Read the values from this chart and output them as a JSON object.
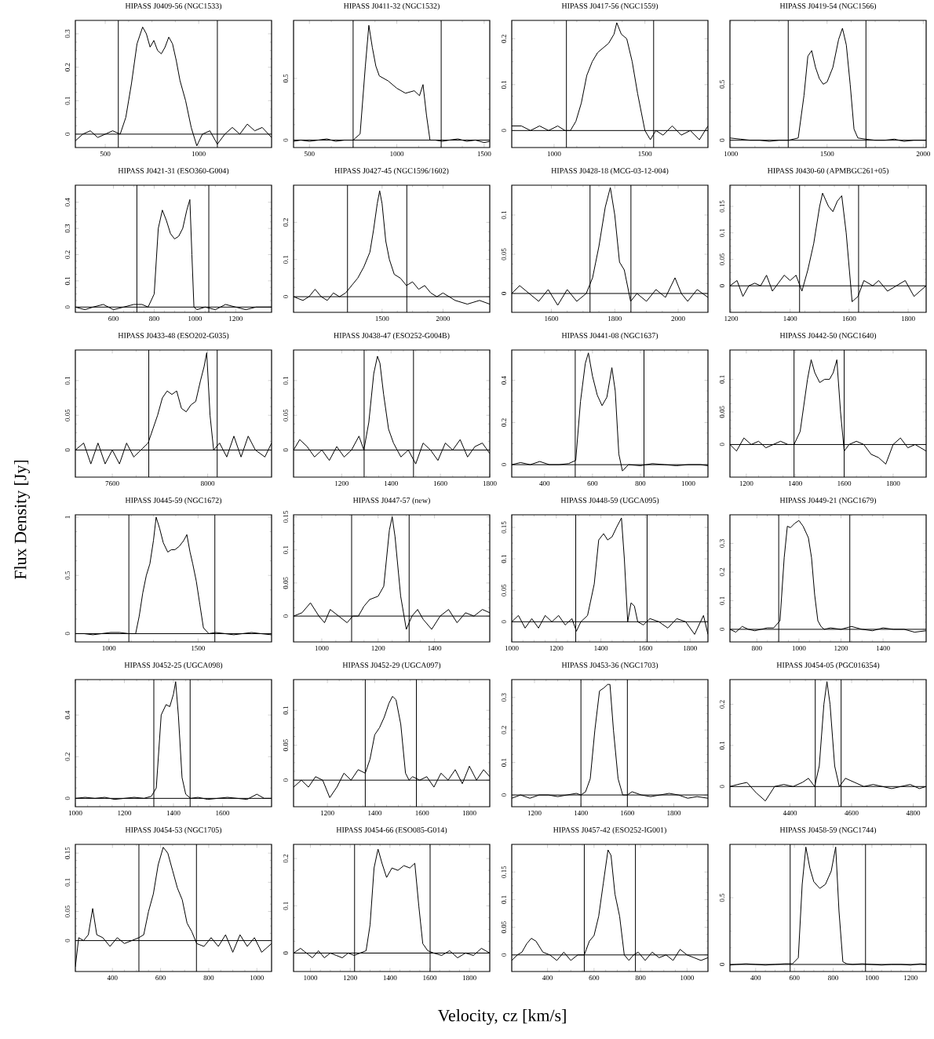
{
  "chart_data": [
    {
      "type": "line",
      "title": "HIPASS J0409-56 (NGC1533)",
      "x": [
        340,
        380,
        420,
        460,
        500,
        540,
        580,
        610,
        640,
        670,
        700,
        720,
        740,
        760,
        780,
        800,
        820,
        840,
        860,
        880,
        900,
        930,
        960,
        990,
        1020,
        1060,
        1100,
        1140,
        1180,
        1220,
        1260,
        1300,
        1340,
        1390
      ],
      "values": [
        -0.02,
        0.0,
        0.01,
        -0.01,
        0.0,
        0.01,
        0.0,
        0.05,
        0.15,
        0.27,
        0.32,
        0.3,
        0.26,
        0.28,
        0.25,
        0.24,
        0.26,
        0.29,
        0.27,
        0.22,
        0.16,
        0.1,
        0.02,
        -0.035,
        0.0,
        0.01,
        -0.03,
        0.0,
        0.02,
        0.0,
        0.03,
        0.01,
        0.02,
        -0.01
      ],
      "xlim": [
        340,
        1390
      ],
      "ylim": [
        -0.04,
        0.34
      ],
      "xticks": [
        500,
        1000
      ],
      "yticks": [
        0,
        0.1,
        0.2,
        0.3
      ],
      "ref_lines": [
        {
          "axis": "x",
          "value": 570
        },
        {
          "axis": "x",
          "value": 1100
        },
        {
          "axis": "y",
          "value": 0
        }
      ]
    },
    {
      "type": "line",
      "title": "HIPASS J0411-32 (NGC1532)",
      "x": [
        409,
        450,
        500,
        550,
        600,
        650,
        700,
        750,
        790,
        820,
        840,
        860,
        880,
        900,
        950,
        1000,
        1050,
        1100,
        1130,
        1150,
        1170,
        1190,
        1220,
        1260,
        1300,
        1350,
        1400,
        1450,
        1500,
        1532
      ],
      "values": [
        -0.01,
        0.0,
        -0.01,
        0.0,
        0.01,
        -0.01,
        0.0,
        0.0,
        0.05,
        0.6,
        0.93,
        0.75,
        0.6,
        0.52,
        0.48,
        0.42,
        0.38,
        0.4,
        0.36,
        0.45,
        0.2,
        0.0,
        0.0,
        -0.01,
        0.0,
        0.01,
        -0.01,
        0.0,
        -0.02,
        -0.01
      ],
      "xlim": [
        409,
        1532
      ],
      "ylim": [
        -0.06,
        0.97
      ],
      "xticks": [
        500,
        1000,
        1500
      ],
      "yticks": [
        0,
        0.5
      ],
      "ref_lines": [
        {
          "axis": "x",
          "value": 750
        },
        {
          "axis": "x",
          "value": 1254
        },
        {
          "axis": "y",
          "value": 0
        }
      ]
    },
    {
      "type": "line",
      "title": "HIPASS J0417-56 (NGC1559)",
      "x": [
        767,
        820,
        870,
        920,
        970,
        1020,
        1060,
        1090,
        1120,
        1150,
        1180,
        1210,
        1240,
        1270,
        1300,
        1330,
        1345,
        1370,
        1400,
        1430,
        1460,
        1500,
        1530,
        1560,
        1600,
        1650,
        1700,
        1750,
        1800,
        1847
      ],
      "values": [
        0.01,
        0.01,
        0.0,
        0.01,
        0.0,
        0.01,
        0.0,
        0.0,
        0.02,
        0.06,
        0.12,
        0.15,
        0.17,
        0.18,
        0.19,
        0.21,
        0.235,
        0.21,
        0.2,
        0.15,
        0.08,
        0.0,
        -0.02,
        0.0,
        -0.01,
        0.01,
        -0.01,
        0.0,
        -0.02,
        0.01
      ],
      "xlim": [
        767,
        1847
      ],
      "ylim": [
        -0.037,
        0.24
      ],
      "xticks": [
        1000,
        1500
      ],
      "yticks": [
        0,
        0.1,
        0.2
      ],
      "ref_lines": [
        {
          "axis": "x",
          "value": 1068
        },
        {
          "axis": "x",
          "value": 1548
        },
        {
          "axis": "y",
          "value": 0
        }
      ]
    },
    {
      "type": "line",
      "title": "HIPASS J0419-54 (NGC1566)",
      "x": [
        995,
        1050,
        1100,
        1150,
        1200,
        1250,
        1300,
        1350,
        1380,
        1400,
        1420,
        1440,
        1460,
        1480,
        1500,
        1530,
        1560,
        1580,
        1600,
        1620,
        1640,
        1660,
        1700,
        1750,
        1800,
        1850,
        1900,
        1950,
        2015
      ],
      "values": [
        0.02,
        0.01,
        0.0,
        0.0,
        -0.01,
        0.0,
        0.0,
        0.02,
        0.4,
        0.75,
        0.8,
        0.65,
        0.55,
        0.5,
        0.52,
        0.65,
        0.9,
        1.0,
        0.85,
        0.5,
        0.1,
        0.02,
        0.01,
        0.0,
        0.0,
        0.01,
        -0.01,
        0.0,
        0.0
      ],
      "xlim": [
        995,
        2015
      ],
      "ylim": [
        -0.065,
        1.07
      ],
      "xticks": [
        1000,
        1500,
        2000
      ],
      "yticks": [
        0,
        0.5
      ],
      "ref_lines": [
        {
          "axis": "x",
          "value": 1298
        },
        {
          "axis": "x",
          "value": 1702
        },
        {
          "axis": "y",
          "value": 0
        }
      ]
    },
    {
      "type": "line",
      "title": "HIPASS J0421-31 (ESO360-G004)",
      "x": [
        413,
        460,
        500,
        550,
        600,
        650,
        700,
        740,
        770,
        800,
        820,
        840,
        860,
        880,
        900,
        920,
        940,
        960,
        975,
        985,
        995,
        1010,
        1050,
        1100,
        1150,
        1200,
        1250,
        1300,
        1376
      ],
      "values": [
        0.0,
        -0.01,
        0.0,
        0.01,
        -0.01,
        0.0,
        0.01,
        0.01,
        0.0,
        0.05,
        0.3,
        0.37,
        0.33,
        0.28,
        0.26,
        0.27,
        0.3,
        0.37,
        0.41,
        0.2,
        0.0,
        -0.01,
        0.0,
        -0.01,
        0.01,
        0.0,
        -0.01,
        0.0,
        0.0
      ],
      "xlim": [
        413,
        1376
      ],
      "ylim": [
        -0.02,
        0.465
      ],
      "xticks": [
        600,
        800,
        1000,
        1200
      ],
      "yticks": [
        0,
        0.1,
        0.2,
        0.3,
        0.4
      ],
      "ref_lines": [
        {
          "axis": "x",
          "value": 715
        },
        {
          "axis": "x",
          "value": 1068
        },
        {
          "axis": "y",
          "value": 0
        }
      ]
    },
    {
      "type": "line",
      "title": "HIPASS J0427-45 (NGC1596/1602)",
      "x": [
        773,
        850,
        900,
        950,
        1000,
        1050,
        1100,
        1150,
        1200,
        1250,
        1300,
        1350,
        1400,
        1430,
        1460,
        1480,
        1500,
        1530,
        1560,
        1600,
        1650,
        1700,
        1750,
        1800,
        1850,
        1900,
        1950,
        2000,
        2100,
        2200,
        2300,
        2384
      ],
      "values": [
        0.0,
        -0.01,
        0.0,
        0.02,
        0.0,
        -0.01,
        0.01,
        0.0,
        0.01,
        0.03,
        0.05,
        0.08,
        0.12,
        0.18,
        0.25,
        0.285,
        0.25,
        0.15,
        0.1,
        0.06,
        0.05,
        0.03,
        0.04,
        0.02,
        0.03,
        0.01,
        0.0,
        0.01,
        -0.01,
        -0.02,
        -0.01,
        -0.02
      ],
      "xlim": [
        773,
        2384
      ],
      "ylim": [
        -0.042,
        0.3
      ],
      "xticks": [
        1500,
        2000
      ],
      "yticks": [
        0,
        0.1,
        0.2
      ],
      "ref_lines": [
        {
          "axis": "x",
          "value": 1216
        },
        {
          "axis": "x",
          "value": 1703
        },
        {
          "axis": "y",
          "value": 0
        }
      ]
    },
    {
      "type": "line",
      "title": "HIPASS J0428-18 (MCG-03-12-004)",
      "x": [
        1475,
        1500,
        1530,
        1560,
        1590,
        1620,
        1650,
        1680,
        1710,
        1730,
        1750,
        1770,
        1786,
        1800,
        1815,
        1830,
        1850,
        1870,
        1900,
        1930,
        1960,
        1990,
        2010,
        2030,
        2060,
        2094
      ],
      "values": [
        0.0,
        0.01,
        0.0,
        -0.01,
        0.005,
        -0.015,
        0.005,
        -0.01,
        0.0,
        0.02,
        0.06,
        0.11,
        0.135,
        0.1,
        0.04,
        0.03,
        -0.01,
        0.0,
        -0.01,
        0.005,
        -0.005,
        0.02,
        0.0,
        -0.01,
        0.005,
        -0.005
      ],
      "xlim": [
        1475,
        2094
      ],
      "ylim": [
        -0.024,
        0.138
      ],
      "xticks": [
        1600,
        1800,
        2000
      ],
      "yticks": [
        0,
        0.05,
        0.1
      ],
      "ref_lines": [
        {
          "axis": "x",
          "value": 1722
        },
        {
          "axis": "x",
          "value": 1851
        },
        {
          "axis": "y",
          "value": 0
        }
      ]
    },
    {
      "type": "line",
      "title": "HIPASS J0430-60 (APMBGC261+05)",
      "x": [
        1196,
        1220,
        1240,
        1260,
        1280,
        1300,
        1320,
        1340,
        1360,
        1380,
        1400,
        1420,
        1440,
        1460,
        1480,
        1500,
        1510,
        1530,
        1545,
        1560,
        1575,
        1590,
        1610,
        1630,
        1650,
        1680,
        1700,
        1730,
        1760,
        1790,
        1820,
        1840,
        1861
      ],
      "values": [
        0.0,
        0.01,
        -0.02,
        0.0,
        0.005,
        0.0,
        0.02,
        -0.01,
        0.005,
        0.02,
        0.01,
        0.02,
        -0.01,
        0.03,
        0.08,
        0.15,
        0.175,
        0.15,
        0.14,
        0.16,
        0.17,
        0.1,
        -0.03,
        -0.02,
        0.01,
        0.0,
        0.01,
        -0.01,
        0.0,
        0.01,
        -0.02,
        -0.01,
        0.0
      ],
      "xlim": [
        1196,
        1861
      ],
      "ylim": [
        -0.05,
        0.19
      ],
      "xticks": [
        1200,
        1400,
        1600,
        1800
      ],
      "yticks": [
        0,
        0.05,
        0.1,
        0.15
      ],
      "ref_lines": [
        {
          "axis": "x",
          "value": 1432
        },
        {
          "axis": "x",
          "value": 1632
        },
        {
          "axis": "y",
          "value": 0
        }
      ]
    },
    {
      "type": "line",
      "title": "HIPASS J0433-48 (ESO202-G035)",
      "x": [
        7445,
        7480,
        7510,
        7540,
        7570,
        7600,
        7630,
        7660,
        7690,
        7720,
        7750,
        7770,
        7790,
        7810,
        7830,
        7850,
        7870,
        7890,
        7910,
        7930,
        7950,
        7970,
        7985,
        7996,
        8010,
        8025,
        8050,
        8080,
        8110,
        8140,
        8170,
        8200,
        8240,
        8268
      ],
      "values": [
        0.0,
        0.01,
        -0.02,
        0.01,
        -0.02,
        0.0,
        -0.02,
        0.01,
        -0.01,
        0.0,
        0.01,
        0.03,
        0.05,
        0.075,
        0.085,
        0.08,
        0.085,
        0.06,
        0.055,
        0.065,
        0.07,
        0.1,
        0.12,
        0.14,
        0.05,
        0.0,
        0.01,
        -0.01,
        0.02,
        -0.01,
        0.02,
        0.0,
        -0.01,
        0.01
      ],
      "xlim": [
        7445,
        8268
      ],
      "ylim": [
        -0.039,
        0.144
      ],
      "xticks": [
        7600,
        8000
      ],
      "yticks": [
        0,
        0.05,
        0.1
      ],
      "ref_lines": [
        {
          "axis": "x",
          "value": 7753
        },
        {
          "axis": "x",
          "value": 8040
        },
        {
          "axis": "y",
          "value": 0
        }
      ]
    },
    {
      "type": "line",
      "title": "HIPASS J0438-47 (ESO252-G004B)",
      "x": [
        1005,
        1030,
        1060,
        1090,
        1120,
        1150,
        1180,
        1210,
        1240,
        1270,
        1290,
        1310,
        1330,
        1345,
        1355,
        1370,
        1390,
        1410,
        1440,
        1470,
        1500,
        1530,
        1560,
        1590,
        1620,
        1650,
        1680,
        1710,
        1740,
        1770,
        1800
      ],
      "values": [
        0.0,
        0.015,
        0.005,
        -0.01,
        0.0,
        -0.015,
        0.005,
        -0.01,
        0.0,
        0.02,
        0.0,
        0.04,
        0.11,
        0.135,
        0.125,
        0.08,
        0.03,
        0.01,
        -0.01,
        0.0,
        -0.02,
        0.01,
        0.0,
        -0.015,
        0.01,
        0.0,
        0.015,
        -0.01,
        0.005,
        0.01,
        -0.005
      ],
      "xlim": [
        1005,
        1800
      ],
      "ylim": [
        -0.039,
        0.144
      ],
      "xticks": [
        1200,
        1400,
        1600,
        1800
      ],
      "yticks": [
        0,
        0.05,
        0.1
      ],
      "ref_lines": [
        {
          "axis": "x",
          "value": 1291
        },
        {
          "axis": "x",
          "value": 1491
        },
        {
          "axis": "y",
          "value": 0
        }
      ]
    },
    {
      "type": "line",
      "title": "HIPASS J0441-08 (NGC1637)",
      "x": [
        263,
        300,
        340,
        380,
        420,
        460,
        500,
        530,
        550,
        570,
        583,
        600,
        620,
        640,
        660,
        681,
        695,
        710,
        725,
        750,
        800,
        850,
        900,
        950,
        1000,
        1050,
        1082
      ],
      "values": [
        0.0,
        0.01,
        0.0,
        0.015,
        0.0,
        0.0,
        0.005,
        0.02,
        0.3,
        0.48,
        0.53,
        0.42,
        0.33,
        0.28,
        0.32,
        0.46,
        0.35,
        0.05,
        -0.03,
        0.0,
        -0.005,
        0.005,
        0.0,
        -0.005,
        0.0,
        0.0,
        -0.005
      ],
      "xlim": [
        263,
        1082
      ],
      "ylim": [
        -0.059,
        0.544
      ],
      "xticks": [
        400,
        600,
        800,
        1000
      ],
      "yticks": [
        0,
        0.2,
        0.4
      ],
      "ref_lines": [
        {
          "axis": "x",
          "value": 528
        },
        {
          "axis": "x",
          "value": 815
        },
        {
          "axis": "y",
          "value": 0
        }
      ]
    },
    {
      "type": "line",
      "title": "HIPASS J0442-50 (NGC1640)",
      "x": [
        1133,
        1160,
        1190,
        1220,
        1250,
        1280,
        1310,
        1340,
        1370,
        1395,
        1420,
        1450,
        1465,
        1480,
        1500,
        1520,
        1540,
        1555,
        1570,
        1585,
        1600,
        1620,
        1650,
        1680,
        1710,
        1740,
        1770,
        1800,
        1830,
        1860,
        1890,
        1935
      ],
      "values": [
        0.0,
        -0.01,
        0.01,
        0.0,
        0.005,
        -0.005,
        0.0,
        0.005,
        0.0,
        0.0,
        0.02,
        0.1,
        0.13,
        0.11,
        0.095,
        0.1,
        0.1,
        0.11,
        0.13,
        0.05,
        -0.01,
        0.0,
        0.005,
        0.0,
        -0.015,
        -0.02,
        -0.03,
        0.0,
        0.01,
        -0.005,
        0.0,
        -0.01
      ],
      "xlim": [
        1133,
        1935
      ],
      "ylim": [
        -0.05,
        0.145
      ],
      "xticks": [
        1200,
        1400,
        1600,
        1800
      ],
      "yticks": [
        0,
        0.05,
        0.1
      ],
      "ref_lines": [
        {
          "axis": "x",
          "value": 1395
        },
        {
          "axis": "x",
          "value": 1600
        },
        {
          "axis": "y",
          "value": 0
        }
      ]
    },
    {
      "type": "line",
      "title": "HIPASS J0445-59 (NGC1672)",
      "x": [
        812,
        860,
        910,
        960,
        1010,
        1060,
        1110,
        1150,
        1170,
        1190,
        1210,
        1230,
        1250,
        1265,
        1285,
        1305,
        1330,
        1350,
        1370,
        1395,
        1420,
        1437,
        1455,
        1470,
        1490,
        1510,
        1530,
        1560,
        1600,
        1650,
        1700,
        1750,
        1800,
        1850,
        1912
      ],
      "values": [
        0.0,
        0.0,
        -0.01,
        0.0,
        0.01,
        0.01,
        0.0,
        0.0,
        0.15,
        0.35,
        0.5,
        0.6,
        0.8,
        1.0,
        0.9,
        0.78,
        0.7,
        0.72,
        0.72,
        0.75,
        0.8,
        0.85,
        0.7,
        0.6,
        0.45,
        0.25,
        0.05,
        0.0,
        0.01,
        0.0,
        -0.01,
        0.0,
        0.01,
        0.0,
        -0.01
      ],
      "xlim": [
        812,
        1912
      ],
      "ylim": [
        -0.071,
        1.02
      ],
      "xticks": [
        1000,
        1500
      ],
      "yticks": [
        0,
        0.5,
        1
      ],
      "ref_lines": [
        {
          "axis": "x",
          "value": 1112
        },
        {
          "axis": "x",
          "value": 1594
        },
        {
          "axis": "y",
          "value": 0
        }
      ]
    },
    {
      "type": "line",
      "title": "HIPASS J0447-57 (new)",
      "x": [
        900,
        930,
        960,
        990,
        1010,
        1030,
        1060,
        1090,
        1110,
        1130,
        1150,
        1170,
        1200,
        1220,
        1240,
        1250,
        1260,
        1280,
        1300,
        1320,
        1340,
        1360,
        1390,
        1420,
        1450,
        1480,
        1510,
        1540,
        1570,
        1596
      ],
      "values": [
        0.0,
        0.005,
        0.02,
        0.0,
        -0.01,
        0.01,
        0.0,
        -0.01,
        0.0,
        0.0,
        0.015,
        0.025,
        0.03,
        0.045,
        0.13,
        0.15,
        0.12,
        0.03,
        -0.02,
        0.0,
        0.01,
        -0.005,
        -0.02,
        0.0,
        0.01,
        -0.01,
        0.005,
        0.0,
        0.01,
        0.005
      ],
      "xlim": [
        900,
        1596
      ],
      "ylim": [
        -0.039,
        0.153
      ],
      "xticks": [
        1000,
        1200,
        1400
      ],
      "yticks": [
        0,
        0.05,
        0.1,
        0.15
      ],
      "ref_lines": [
        {
          "axis": "x",
          "value": 1106
        },
        {
          "axis": "x",
          "value": 1310
        },
        {
          "axis": "y",
          "value": 0
        }
      ]
    },
    {
      "type": "line",
      "title": "HIPASS J0448-59 (UGCA095)",
      "x": [
        1000,
        1030,
        1060,
        1090,
        1120,
        1150,
        1180,
        1210,
        1240,
        1270,
        1290,
        1310,
        1340,
        1370,
        1390,
        1412,
        1430,
        1450,
        1470,
        1492,
        1505,
        1520,
        1535,
        1550,
        1565,
        1590,
        1620,
        1660,
        1700,
        1740,
        1780,
        1820,
        1860,
        1880
      ],
      "values": [
        0.0,
        0.01,
        -0.01,
        0.005,
        -0.01,
        0.01,
        0.0,
        0.01,
        -0.005,
        0.005,
        -0.015,
        0.0,
        0.01,
        0.06,
        0.13,
        0.14,
        0.13,
        0.135,
        0.15,
        0.165,
        0.1,
        0.0,
        0.03,
        0.025,
        0.0,
        -0.005,
        0.005,
        0.0,
        -0.01,
        0.005,
        0.0,
        -0.02,
        0.01,
        -0.02
      ],
      "xlim": [
        1000,
        1880
      ],
      "ylim": [
        -0.032,
        0.17
      ],
      "xticks": [
        1000,
        1200,
        1400,
        1600,
        1800
      ],
      "yticks": [
        0,
        0.05,
        0.1,
        0.15
      ],
      "ref_lines": [
        {
          "axis": "x",
          "value": 1287
        },
        {
          "axis": "x",
          "value": 1607
        },
        {
          "axis": "y",
          "value": 0
        }
      ]
    },
    {
      "type": "line",
      "title": "HIPASS J0449-21 (NGC1679)",
      "x": [
        672,
        700,
        730,
        760,
        790,
        820,
        850,
        880,
        910,
        930,
        945,
        960,
        980,
        1000,
        1020,
        1045,
        1060,
        1075,
        1090,
        1105,
        1120,
        1150,
        1200,
        1250,
        1300,
        1350,
        1400,
        1450,
        1500,
        1550,
        1605
      ],
      "values": [
        0.0,
        -0.01,
        0.01,
        0.0,
        -0.005,
        0.0,
        0.005,
        0.005,
        0.03,
        0.25,
        0.36,
        0.355,
        0.37,
        0.38,
        0.36,
        0.32,
        0.25,
        0.12,
        0.03,
        0.01,
        0.0,
        0.005,
        0.0,
        0.01,
        0.0,
        -0.005,
        0.005,
        0.0,
        0.0,
        -0.01,
        -0.005
      ],
      "xlim": [
        672,
        1605
      ],
      "ylim": [
        -0.044,
        0.4
      ],
      "xticks": [
        800,
        1000,
        1200,
        1400
      ],
      "yticks": [
        0,
        0.1,
        0.2,
        0.3
      ],
      "ref_lines": [
        {
          "axis": "x",
          "value": 904
        },
        {
          "axis": "x",
          "value": 1242
        },
        {
          "axis": "y",
          "value": 0
        }
      ]
    },
    {
      "type": "line",
      "title": "HIPASS J0452-25 (UGCA098)",
      "x": [
        1000,
        1040,
        1080,
        1120,
        1160,
        1200,
        1240,
        1280,
        1310,
        1330,
        1350,
        1370,
        1385,
        1400,
        1409,
        1420,
        1435,
        1450,
        1470,
        1500,
        1540,
        1580,
        1620,
        1660,
        1700,
        1740,
        1770,
        1800
      ],
      "values": [
        0.0,
        0.005,
        0.0,
        0.005,
        -0.005,
        0.0,
        0.005,
        0.0,
        0.01,
        0.05,
        0.4,
        0.45,
        0.44,
        0.5,
        0.56,
        0.4,
        0.1,
        0.02,
        0.0,
        0.005,
        -0.005,
        0.0,
        0.005,
        0.0,
        -0.005,
        0.02,
        0.0,
        0.0
      ],
      "xlim": [
        1000,
        1800
      ],
      "ylim": [
        -0.04,
        0.57
      ],
      "xticks": [
        1000,
        1200,
        1400,
        1600
      ],
      "yticks": [
        0,
        0.2,
        0.4
      ],
      "ref_lines": [
        {
          "axis": "x",
          "value": 1320
        },
        {
          "axis": "x",
          "value": 1468
        },
        {
          "axis": "y",
          "value": 0
        }
      ]
    },
    {
      "type": "line",
      "title": "HIPASS J0452-29 (UGCA097)",
      "x": [
        1057,
        1090,
        1120,
        1150,
        1180,
        1210,
        1240,
        1270,
        1300,
        1330,
        1360,
        1380,
        1400,
        1420,
        1440,
        1460,
        1475,
        1490,
        1510,
        1530,
        1545,
        1560,
        1590,
        1620,
        1650,
        1680,
        1710,
        1740,
        1770,
        1800,
        1830,
        1860,
        1886
      ],
      "values": [
        -0.01,
        0.0,
        -0.01,
        0.005,
        0.0,
        -0.025,
        -0.01,
        0.01,
        0.0,
        0.015,
        0.01,
        0.03,
        0.065,
        0.075,
        0.09,
        0.11,
        0.12,
        0.115,
        0.08,
        0.01,
        0.0,
        0.005,
        0.0,
        0.005,
        -0.01,
        0.01,
        0.0,
        0.015,
        -0.005,
        0.02,
        0.0,
        0.015,
        0.005
      ],
      "xlim": [
        1057,
        1886
      ],
      "ylim": [
        -0.038,
        0.144
      ],
      "xticks": [
        1200,
        1400,
        1600,
        1800
      ],
      "yticks": [
        0,
        0.05,
        0.1
      ],
      "ref_lines": [
        {
          "axis": "x",
          "value": 1360
        },
        {
          "axis": "x",
          "value": 1576
        },
        {
          "axis": "y",
          "value": 0
        }
      ]
    },
    {
      "type": "line",
      "title": "HIPASS J0453-36 (NGC1703)",
      "x": [
        1102,
        1140,
        1180,
        1220,
        1260,
        1300,
        1340,
        1380,
        1400,
        1420,
        1440,
        1460,
        1480,
        1500,
        1515,
        1525,
        1540,
        1560,
        1580,
        1600,
        1620,
        1660,
        1700,
        1740,
        1780,
        1820,
        1860,
        1900,
        1947
      ],
      "values": [
        -0.01,
        0.0,
        -0.01,
        0.0,
        0.0,
        -0.005,
        0.0,
        0.005,
        0.0,
        0.01,
        0.05,
        0.2,
        0.32,
        0.33,
        0.34,
        0.34,
        0.2,
        0.05,
        0.0,
        0.0,
        0.01,
        0.0,
        -0.005,
        0.0,
        0.005,
        0.0,
        -0.01,
        -0.005,
        -0.01
      ],
      "xlim": [
        1102,
        1947
      ],
      "ylim": [
        -0.036,
        0.355
      ],
      "xticks": [
        1200,
        1400,
        1600,
        1800
      ],
      "yticks": [
        0,
        0.1,
        0.2,
        0.3
      ],
      "ref_lines": [
        {
          "axis": "x",
          "value": 1400
        },
        {
          "axis": "x",
          "value": 1600
        },
        {
          "axis": "y",
          "value": 0
        }
      ]
    },
    {
      "type": "line",
      "title": "HIPASS J0454-05 (PGC016354)",
      "x": [
        4205,
        4230,
        4260,
        4290,
        4320,
        4350,
        4380,
        4410,
        4440,
        4460,
        4480,
        4495,
        4510,
        4520,
        4530,
        4545,
        4560,
        4580,
        4610,
        4640,
        4670,
        4700,
        4730,
        4760,
        4790,
        4820,
        4842
      ],
      "values": [
        0.0,
        0.005,
        0.01,
        -0.015,
        -0.035,
        0.0,
        0.005,
        0.0,
        0.01,
        0.02,
        0.0,
        0.05,
        0.2,
        0.255,
        0.2,
        0.05,
        0.0,
        0.02,
        0.01,
        0.0,
        0.005,
        0.0,
        -0.005,
        0.0,
        0.005,
        -0.005,
        0.0
      ],
      "xlim": [
        4205,
        4842
      ],
      "ylim": [
        -0.049,
        0.26
      ],
      "xticks": [
        4400,
        4600,
        4800
      ],
      "yticks": [
        0,
        0.1,
        0.2
      ],
      "ref_lines": [
        {
          "axis": "x",
          "value": 4482
        },
        {
          "axis": "x",
          "value": 4566
        },
        {
          "axis": "y",
          "value": 0
        }
      ]
    },
    {
      "type": "line",
      "title": "HIPASS J0454-53 (NGC1705)",
      "x": [
        246,
        260,
        280,
        300,
        318,
        335,
        360,
        390,
        420,
        450,
        480,
        510,
        530,
        550,
        570,
        590,
        611,
        630,
        650,
        670,
        690,
        710,
        730,
        750,
        780,
        810,
        840,
        870,
        900,
        930,
        960,
        990,
        1020,
        1061
      ],
      "values": [
        -0.045,
        0.005,
        0.0,
        0.01,
        0.055,
        0.01,
        0.005,
        -0.01,
        0.005,
        -0.005,
        0.0,
        0.005,
        0.01,
        0.05,
        0.08,
        0.13,
        0.16,
        0.15,
        0.12,
        0.09,
        0.07,
        0.03,
        0.015,
        -0.005,
        -0.01,
        0.005,
        -0.01,
        0.01,
        -0.02,
        0.01,
        -0.01,
        0.005,
        -0.02,
        -0.005
      ],
      "xlim": [
        246,
        1061
      ],
      "ylim": [
        -0.053,
        0.165
      ],
      "xticks": [
        400,
        600,
        800,
        1000
      ],
      "yticks": [
        0,
        0.05,
        0.1,
        0.15
      ],
      "ref_lines": [
        {
          "axis": "x",
          "value": 510
        },
        {
          "axis": "x",
          "value": 749
        },
        {
          "axis": "y",
          "value": 0
        }
      ]
    },
    {
      "type": "line",
      "title": "HIPASS J0454-66 (ESO085-G014)",
      "x": [
        915,
        950,
        980,
        1010,
        1040,
        1070,
        1100,
        1130,
        1160,
        1190,
        1220,
        1250,
        1280,
        1300,
        1320,
        1340,
        1360,
        1383,
        1410,
        1440,
        1470,
        1500,
        1525,
        1545,
        1565,
        1590,
        1620,
        1660,
        1700,
        1740,
        1780,
        1820,
        1860,
        1902
      ],
      "values": [
        0.0,
        0.01,
        0.0,
        -0.01,
        0.005,
        -0.01,
        0.0,
        -0.005,
        -0.01,
        0.0,
        -0.005,
        0.0,
        0.005,
        0.06,
        0.18,
        0.22,
        0.19,
        0.16,
        0.18,
        0.175,
        0.185,
        0.18,
        0.19,
        0.1,
        0.02,
        0.005,
        0.0,
        -0.005,
        0.005,
        -0.01,
        0.0,
        -0.005,
        0.01,
        0.0
      ],
      "xlim": [
        915,
        1902
      ],
      "ylim": [
        -0.039,
        0.23
      ],
      "xticks": [
        1000,
        1200,
        1400,
        1600,
        1800
      ],
      "yticks": [
        0,
        0.1,
        0.2
      ],
      "ref_lines": [
        {
          "axis": "x",
          "value": 1222
        },
        {
          "axis": "x",
          "value": 1602
        },
        {
          "axis": "y",
          "value": 0
        }
      ]
    },
    {
      "type": "line",
      "title": "HIPASS J0457-42 (ESO252-IG001)",
      "x": [
        246,
        270,
        290,
        310,
        330,
        350,
        380,
        410,
        440,
        470,
        500,
        530,
        558,
        580,
        600,
        620,
        640,
        660,
        673,
        690,
        710,
        730,
        750,
        770,
        790,
        820,
        850,
        880,
        910,
        940,
        970,
        1000,
        1030,
        1060,
        1090
      ],
      "values": [
        -0.01,
        0.0,
        0.005,
        0.02,
        0.03,
        0.025,
        0.005,
        0.0,
        -0.01,
        0.005,
        -0.01,
        0.0,
        0.0,
        0.025,
        0.035,
        0.07,
        0.13,
        0.19,
        0.18,
        0.11,
        0.07,
        0.0,
        -0.01,
        0.0,
        0.005,
        -0.01,
        0.005,
        -0.005,
        0.0,
        -0.01,
        0.01,
        0.0,
        -0.005,
        -0.01,
        -0.005
      ],
      "xlim": [
        246,
        1090
      ],
      "ylim": [
        -0.03,
        0.2
      ],
      "xticks": [
        400,
        600,
        800,
        1000
      ],
      "yticks": [
        0,
        0.05,
        0.1,
        0.15
      ],
      "ref_lines": [
        {
          "axis": "x",
          "value": 558
        },
        {
          "axis": "x",
          "value": 778
        },
        {
          "axis": "y",
          "value": 0
        }
      ]
    },
    {
      "type": "line",
      "title": "HIPASS J0458-59 (NGC1744)",
      "x": [
        267,
        300,
        350,
        400,
        450,
        500,
        550,
        590,
        620,
        640,
        659,
        680,
        700,
        731,
        760,
        790,
        813,
        830,
        850,
        870,
        900,
        950,
        1000,
        1050,
        1100,
        1150,
        1200,
        1250,
        1280
      ],
      "values": [
        -0.005,
        0.0,
        0.005,
        0.0,
        -0.005,
        0.0,
        0.005,
        0.005,
        0.05,
        0.6,
        0.88,
        0.72,
        0.62,
        0.57,
        0.6,
        0.7,
        0.88,
        0.4,
        0.02,
        0.005,
        0.0,
        0.005,
        0.0,
        -0.005,
        0.0,
        0.0,
        -0.005,
        0.005,
        0.0
      ],
      "xlim": [
        267,
        1280
      ],
      "ylim": [
        -0.053,
        0.9
      ],
      "xticks": [
        400,
        600,
        800,
        1000,
        1200
      ],
      "yticks": [
        0,
        0.5
      ],
      "ref_lines": [
        {
          "axis": "x",
          "value": 578
        },
        {
          "axis": "x",
          "value": 967
        },
        {
          "axis": "y",
          "value": 0
        }
      ]
    },
    {
      "type": "other",
      "xlabel": "Velocity, cz [km/s]",
      "ylabel": "Flux Density [Jy]"
    }
  ]
}
